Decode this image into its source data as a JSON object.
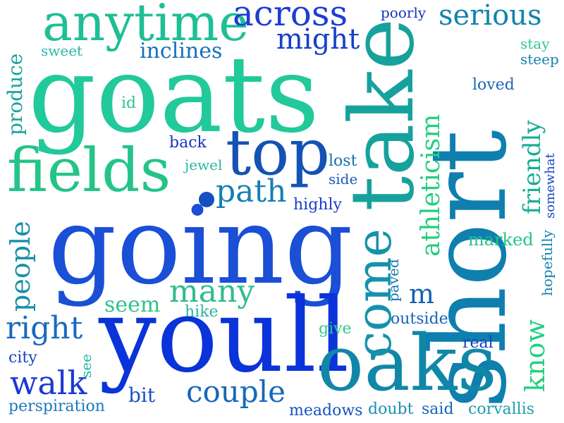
{
  "words": [
    {
      "text": "goats",
      "color": "#22c99a"
    },
    {
      "text": "going",
      "color": "#1a4fd6"
    },
    {
      "text": "youll",
      "color": "#0a33d9"
    },
    {
      "text": "short",
      "color": "#0e7fae"
    },
    {
      "text": "take",
      "color": "#17a19c"
    },
    {
      "text": "oaks",
      "color": "#1187a8"
    },
    {
      "text": "fields",
      "color": "#24c489"
    },
    {
      "text": "top",
      "color": "#1452b4"
    },
    {
      "text": "anytime",
      "color": "#1fbf96"
    },
    {
      "text": "across",
      "color": "#1a3fd0"
    },
    {
      "text": "come",
      "color": "#1592ab"
    },
    {
      "text": "many",
      "color": "#2fbc8c"
    },
    {
      "text": "path",
      "color": "#157fb4"
    },
    {
      "text": "right",
      "color": "#186ac0"
    },
    {
      "text": "couple",
      "color": "#1569b8"
    },
    {
      "text": "walk",
      "color": "#1a39d3"
    },
    {
      "text": "might",
      "color": "#1640c8"
    },
    {
      "text": "serious",
      "color": "#1184ae"
    },
    {
      "text": "know",
      "color": "#21d27d"
    },
    {
      "text": "people",
      "color": "#1690a8"
    },
    {
      "text": "athleticism",
      "color": "#23cf7f"
    },
    {
      "text": "friendly",
      "color": "#19ad95"
    },
    {
      "text": "inclines",
      "color": "#186fbc"
    },
    {
      "text": "seem",
      "color": "#2fc28f"
    },
    {
      "text": "produce",
      "color": "#18a39a"
    },
    {
      "text": "m",
      "color": "#1264ad"
    },
    {
      "text": "meadows",
      "color": "#1453c4"
    },
    {
      "text": "doubt",
      "color": "#1a8fb0"
    },
    {
      "text": "said",
      "color": "#1664b8"
    },
    {
      "text": "corvallis",
      "color": "#1b9ea7"
    },
    {
      "text": "perspiration",
      "color": "#1879c0"
    },
    {
      "text": "bit",
      "color": "#1856c2"
    },
    {
      "text": "city",
      "color": "#1a44c6"
    },
    {
      "text": "see",
      "color": "#22b8a0"
    },
    {
      "text": "hike",
      "color": "#2bb7a2"
    },
    {
      "text": "give",
      "color": "#2dc88d"
    },
    {
      "text": "real",
      "color": "#1640c2"
    },
    {
      "text": "outside",
      "color": "#1664b8"
    },
    {
      "text": "paved",
      "color": "#1276b0"
    },
    {
      "text": "hopefully",
      "color": "#1883b0"
    },
    {
      "text": "marked",
      "color": "#24c489"
    },
    {
      "text": "somewhat",
      "color": "#1646c0"
    },
    {
      "text": "highly",
      "color": "#1a3cc8"
    },
    {
      "text": "side",
      "color": "#1a5ac0"
    },
    {
      "text": "lost",
      "color": "#1470b0"
    },
    {
      "text": "back",
      "color": "#1632c8"
    },
    {
      "text": "jewel",
      "color": "#2ab8a0"
    },
    {
      "text": "id",
      "color": "#2fc28f"
    },
    {
      "text": "sweet",
      "color": "#2db8a8"
    },
    {
      "text": "loved",
      "color": "#1a66b8"
    },
    {
      "text": "stay",
      "color": "#30c69c"
    },
    {
      "text": "steep",
      "color": "#1782b0"
    },
    {
      "text": "poorly",
      "color": "#1430c4"
    },
    {
      "text": "dot",
      "color": "#1450c0"
    }
  ]
}
